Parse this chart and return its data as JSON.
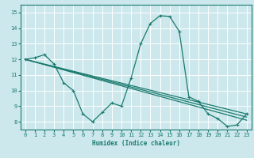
{
  "title": "",
  "xlabel": "Humidex (Indice chaleur)",
  "bg_color": "#cce8ec",
  "line_color": "#1a7a6e",
  "grid_color": "#ffffff",
  "xlim": [
    -0.5,
    23.5
  ],
  "ylim": [
    7.5,
    15.5
  ],
  "yticks": [
    8,
    9,
    10,
    11,
    12,
    13,
    14,
    15
  ],
  "xticks": [
    0,
    1,
    2,
    3,
    4,
    5,
    6,
    7,
    8,
    9,
    10,
    11,
    12,
    13,
    14,
    15,
    16,
    17,
    18,
    19,
    20,
    21,
    22,
    23
  ],
  "line1_x": [
    0,
    1,
    2,
    3,
    4,
    5,
    6,
    7,
    8,
    9,
    10,
    11,
    12,
    13,
    14,
    15,
    16,
    17,
    18,
    19,
    20,
    21,
    22,
    23
  ],
  "line1_y": [
    12.0,
    12.1,
    12.3,
    11.7,
    10.5,
    10.0,
    8.5,
    8.0,
    8.6,
    9.2,
    9.0,
    10.8,
    13.0,
    14.3,
    14.8,
    14.75,
    13.8,
    9.6,
    9.3,
    8.5,
    8.2,
    7.7,
    7.8,
    8.5
  ],
  "line2_x": [
    0,
    23
  ],
  "line2_y": [
    12.0,
    8.5
  ],
  "line3_x": [
    0,
    23
  ],
  "line3_y": [
    12.0,
    8.3
  ],
  "line4_x": [
    0,
    23
  ],
  "line4_y": [
    12.0,
    8.1
  ]
}
